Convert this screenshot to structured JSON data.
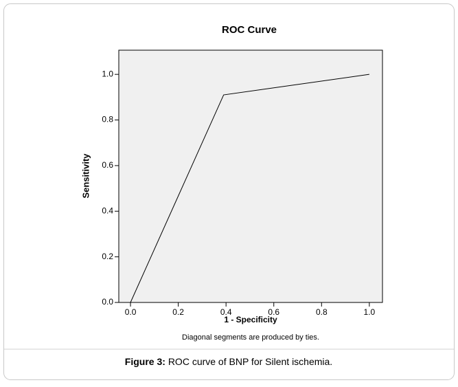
{
  "chart_data": {
    "type": "line",
    "title": "ROC Curve",
    "x_label": "1 - Specificity",
    "y_label": "Sensitivity",
    "x": [
      0,
      0.39,
      1
    ],
    "values": [
      0,
      0.91,
      1
    ],
    "color": "#000000",
    "xlim": [
      -0.049,
      1.055
    ],
    "ylim": [
      0,
      1.106
    ],
    "xticks": [
      {
        "value": 0,
        "label": "0.0"
      },
      0.2,
      0.4,
      0.6,
      0.8,
      {
        "value": 1,
        "label": "1.0"
      }
    ],
    "yticks": [
      {
        "value": 0,
        "label": "0.0"
      },
      0.2,
      0.4,
      0.6,
      0.8,
      {
        "value": 1,
        "label": "1.0"
      }
    ],
    "note": "Diagonal segments are produced by ties.",
    "caption": {
      "label": "Figure 3:",
      "text": "ROC curve of BNP for Silent ischemia."
    }
  }
}
